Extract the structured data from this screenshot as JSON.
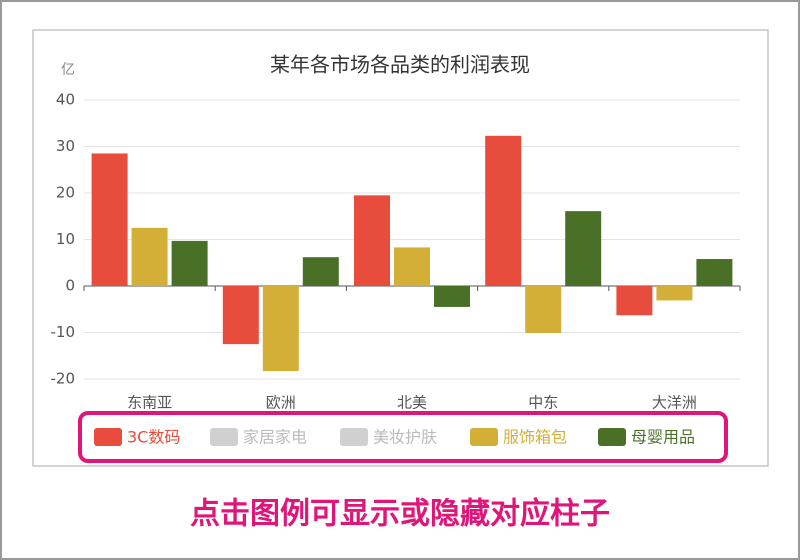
{
  "chart_data": {
    "type": "bar",
    "title": "某年各市场各品类的利润表现",
    "y_unit": "亿",
    "categories": [
      "东南亚",
      "欧洲",
      "北美",
      "中东",
      "大洋洲"
    ],
    "series": [
      {
        "name": "3C数码",
        "color": "#e84c3d",
        "values": [
          28.5,
          -12.5,
          19.5,
          32.3,
          -6.3
        ]
      },
      {
        "name": "家居家电",
        "color": "#d0d0d0",
        "visible": false
      },
      {
        "name": "美妆护肤",
        "color": "#d0d0d0",
        "visible": false
      },
      {
        "name": "服饰箱包",
        "color": "#d4af37",
        "values": [
          12.5,
          -18.3,
          8.3,
          -10.1,
          -3.1
        ]
      },
      {
        "name": "母婴用品",
        "color": "#4a7028",
        "values": [
          9.7,
          6.2,
          -4.5,
          16.1,
          5.8
        ]
      }
    ],
    "ylim": [
      -20,
      40
    ],
    "yticks": [
      -20,
      -10,
      0,
      10,
      20,
      30,
      40
    ],
    "grid": true,
    "caption": "点击图例可显示或隐藏对应柱子"
  }
}
